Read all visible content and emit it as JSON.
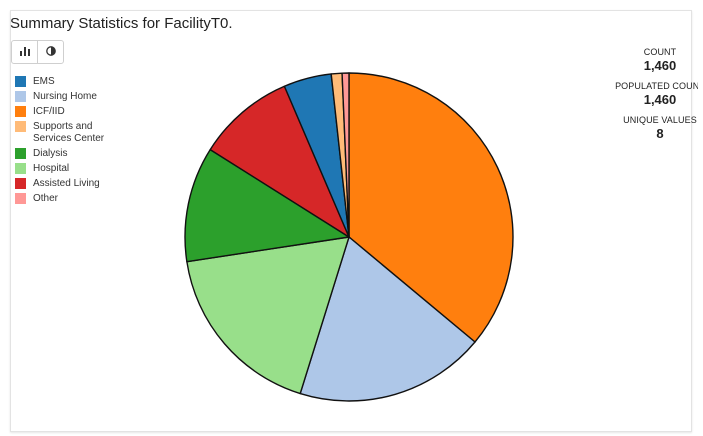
{
  "title": "Summary Statistics for FacilityT0.",
  "toolbar": {
    "bar_icon": "bar-chart-icon",
    "pie_icon": "half-circle-icon"
  },
  "stats": [
    {
      "label": "COUNT",
      "value": "1,460"
    },
    {
      "label": "POPULATED COUNT",
      "value": "1,460"
    },
    {
      "label": "UNIQUE VALUES",
      "value": "8"
    }
  ],
  "chart_data": {
    "type": "pie",
    "legend_position": "left",
    "start_angle_deg": 0,
    "direction": "clockwise",
    "slices": [
      {
        "label": "ICF/IID",
        "value": 37.5,
        "color": "#ff7f0e"
      },
      {
        "label": "Nursing Home",
        "value": 19.5,
        "color": "#aec7e8"
      },
      {
        "label": "Hospital",
        "value": 18.5,
        "color": "#98df8a"
      },
      {
        "label": "Dialysis",
        "value": 11.8,
        "color": "#2ca02c"
      },
      {
        "label": "Assisted Living",
        "value": 10.0,
        "color": "#d62728"
      },
      {
        "label": "EMS",
        "value": 4.9,
        "color": "#1f77b4"
      },
      {
        "label": "Supports and Services Center",
        "value": 1.1,
        "color": "#ffbb78"
      },
      {
        "label": "Other",
        "value": 0.7,
        "color": "#ff9896"
      }
    ],
    "legend": [
      {
        "label": "EMS",
        "color": "#1f77b4"
      },
      {
        "label": "Nursing Home",
        "color": "#aec7e8"
      },
      {
        "label": "ICF/IID",
        "color": "#ff7f0e"
      },
      {
        "label": "Supports and Services Center",
        "color": "#ffbb78"
      },
      {
        "label": "Dialysis",
        "color": "#2ca02c"
      },
      {
        "label": "Hospital",
        "color": "#98df8a"
      },
      {
        "label": "Assisted Living",
        "color": "#d62728"
      },
      {
        "label": "Other",
        "color": "#ff9896"
      }
    ]
  }
}
